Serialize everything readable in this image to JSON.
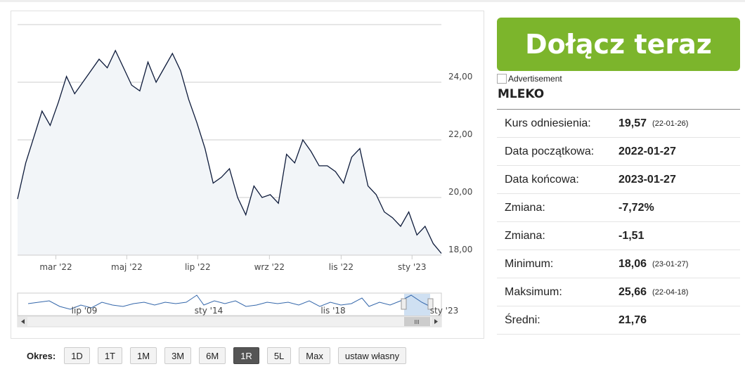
{
  "chart_data": {
    "type": "area",
    "series": [
      {
        "name": "MLEKO",
        "color": "#0d1a3a",
        "fill": "#f2f5f8",
        "values": [
          19.95,
          21.2,
          22.1,
          23.0,
          22.5,
          23.3,
          24.2,
          23.6,
          24.0,
          24.4,
          24.8,
          24.5,
          25.1,
          24.5,
          23.9,
          23.7,
          24.7,
          24.0,
          24.5,
          25.0,
          24.4,
          23.4,
          22.6,
          21.7,
          20.5,
          20.7,
          21.0,
          20.0,
          19.4,
          20.4,
          20.0,
          20.1,
          19.8,
          21.5,
          21.2,
          22.0,
          21.6,
          21.1,
          21.1,
          20.9,
          20.5,
          21.4,
          21.7,
          20.4,
          20.1,
          19.5,
          19.3,
          19.0,
          19.5,
          18.7,
          19.0,
          18.4,
          18.06
        ]
      }
    ],
    "xlim": [
      0,
      52
    ],
    "xticks": [
      {
        "value": 4.7,
        "label": "mar '22"
      },
      {
        "value": 13.4,
        "label": "maj '22"
      },
      {
        "value": 22.1,
        "label": "lip '22"
      },
      {
        "value": 30.9,
        "label": "wrz '22"
      },
      {
        "value": 39.7,
        "label": "lis '22"
      },
      {
        "value": 48.4,
        "label": "sty '23"
      }
    ],
    "ylim": [
      18,
      26
    ],
    "yticks": [
      {
        "value": 18,
        "label": "18,00"
      },
      {
        "value": 20,
        "label": "20,00"
      },
      {
        "value": 22,
        "label": "22,00"
      },
      {
        "value": 24,
        "label": "24,00"
      }
    ],
    "grid": true,
    "navigator_labels": [
      "lip '09",
      "sty '14",
      "lis '18",
      "sty '23"
    ]
  },
  "ad": {
    "button": "Dołącz teraz",
    "alt": "Advertisement"
  },
  "stock": {
    "name": "MLEKO",
    "rows": [
      {
        "label": "Kurs odniesienia:",
        "value": "19,57",
        "date": "(22-01-26)"
      },
      {
        "label": "Data początkowa:",
        "value": "2022-01-27"
      },
      {
        "label": "Data końcowa:",
        "value": "2023-01-27"
      },
      {
        "label": "Zmiana:",
        "value": "-7,72%"
      },
      {
        "label": "Zmiana:",
        "value": "-1,51"
      },
      {
        "label": "Minimum:",
        "value": "18,06",
        "date": "(23-01-27)"
      },
      {
        "label": "Maksimum:",
        "value": "25,66",
        "date": "(22-04-18)"
      },
      {
        "label": "Średni:",
        "value": "21,76"
      }
    ]
  },
  "periods": {
    "label": "Okres:",
    "buttons": [
      "1D",
      "1T",
      "1M",
      "3M",
      "6M",
      "1R",
      "5L",
      "Max",
      "ustaw własny"
    ],
    "active": 5
  }
}
